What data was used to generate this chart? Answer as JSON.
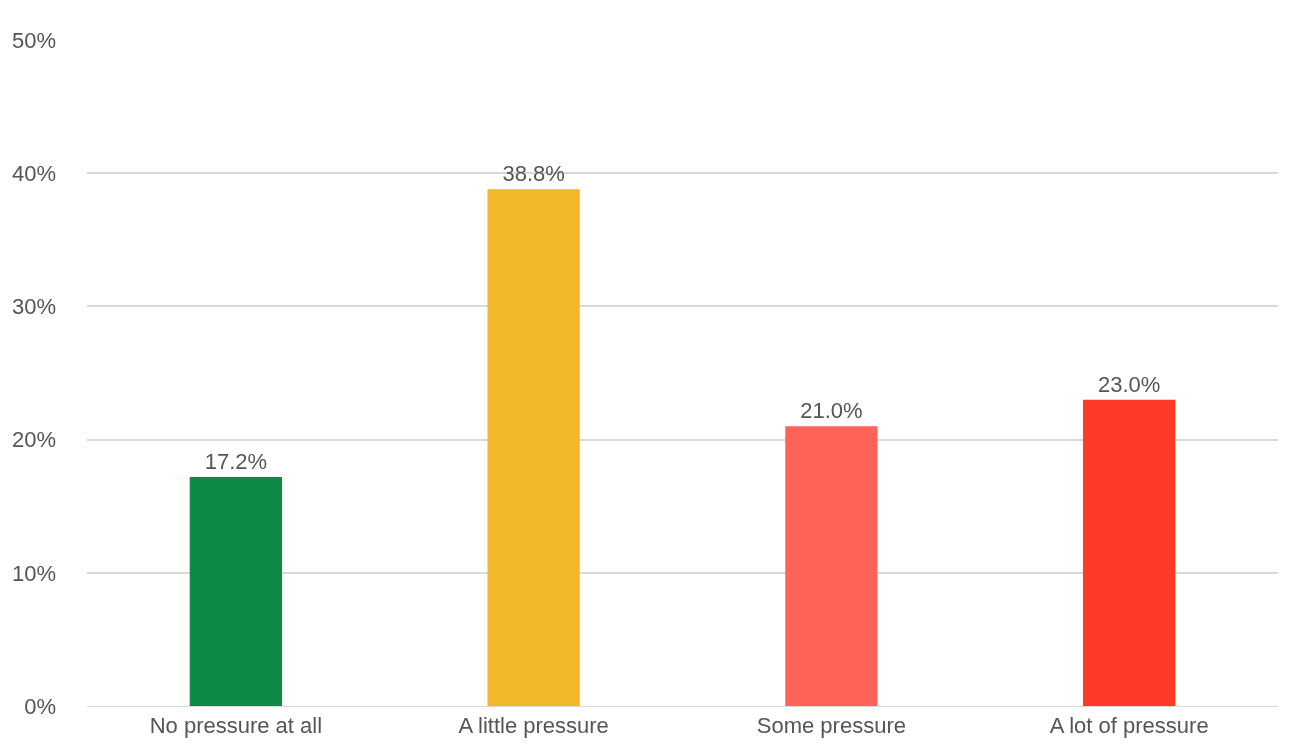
{
  "chart_data": {
    "type": "bar",
    "categories": [
      "No pressure at all",
      "A little pressure",
      "Some pressure",
      "A lot of pressure"
    ],
    "values": [
      17.2,
      38.8,
      21.0,
      23.0
    ],
    "colors": [
      "#0e8a47",
      "#f2b829",
      "#fd6356",
      "#fc3a26"
    ],
    "value_labels": [
      "17.2%",
      "38.8%",
      "21.0%",
      "23.0%"
    ],
    "ylim": [
      0,
      50
    ],
    "yticks": [
      {
        "value": 0,
        "label": "0%"
      },
      {
        "value": 10,
        "label": "10%"
      },
      {
        "value": 20,
        "label": "20%"
      },
      {
        "value": 30,
        "label": "30%"
      },
      {
        "value": 40,
        "label": "40%"
      },
      {
        "value": 50,
        "label": "50%"
      }
    ],
    "grid": "y"
  }
}
